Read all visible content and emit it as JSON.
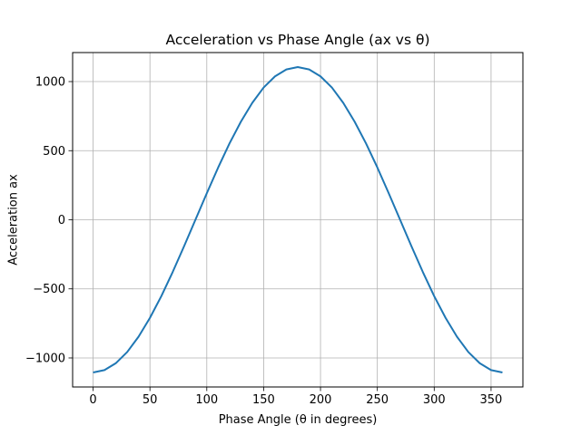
{
  "chart_data": {
    "type": "line",
    "title": "Acceleration vs Phase Angle (ax vs θ)",
    "xlabel": "Phase Angle (θ in degrees)",
    "ylabel": "Acceleration ax",
    "xlim": [
      -18,
      378
    ],
    "ylim": [
      -1210,
      1210
    ],
    "xticks": [
      0,
      50,
      100,
      150,
      200,
      250,
      300,
      350
    ],
    "xtick_labels": [
      "0",
      "50",
      "100",
      "150",
      "200",
      "250",
      "300",
      "350"
    ],
    "yticks": [
      -1000,
      -500,
      0,
      500,
      1000
    ],
    "ytick_labels": [
      "−1000",
      "−500",
      "0",
      "500",
      "1000"
    ],
    "grid": true,
    "series": [
      {
        "color": "#1f77b4",
        "x": [
          0,
          10,
          20,
          30,
          40,
          50,
          60,
          70,
          80,
          90,
          100,
          110,
          120,
          130,
          140,
          150,
          160,
          170,
          180,
          190,
          200,
          210,
          220,
          230,
          240,
          250,
          260,
          270,
          280,
          290,
          300,
          310,
          320,
          330,
          340,
          350,
          360
        ],
        "y": [
          -1105,
          -1088,
          -1038,
          -957,
          -846,
          -710,
          -553,
          -378,
          -192,
          0,
          192,
          378,
          553,
          710,
          846,
          957,
          1038,
          1088,
          1105,
          1088,
          1038,
          957,
          846,
          710,
          553,
          378,
          192,
          0,
          -192,
          -378,
          -553,
          -710,
          -846,
          -957,
          -1038,
          -1088,
          -1105
        ]
      }
    ]
  }
}
